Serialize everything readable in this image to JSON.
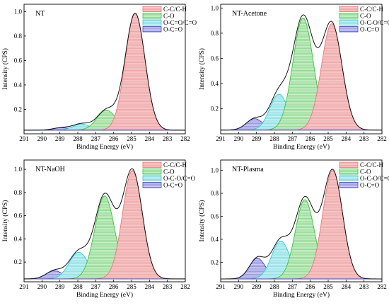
{
  "figure": {
    "xlabel": "Binding Energy (eV)",
    "ylabel": "Intensity (CPS)"
  },
  "chart_data": [
    {
      "type": "area",
      "label": "NT",
      "xlabel": "Binding Energy (eV)",
      "ylabel": "Intensity (CPS)",
      "xlim": [
        291,
        282
      ],
      "ylim": [
        0,
        1.06
      ],
      "xticks": [
        291,
        290,
        289,
        288,
        287,
        286,
        285,
        284,
        283,
        282
      ],
      "yticks": [
        0.2,
        0.4,
        0.6,
        0.8,
        1.0
      ],
      "xticklabels": [
        "291",
        "290",
        "289",
        "288",
        "287",
        "286",
        "285",
        "284",
        "283",
        "282"
      ],
      "yticklabels": [
        "0.2",
        "0.4",
        "0.6",
        "0.8",
        "1.0"
      ],
      "legend_position": "top-right",
      "baseline": 0.03,
      "series": [
        {
          "name": "C-C/C-H",
          "center": 284.8,
          "height": 0.955,
          "fwhm": 1.3,
          "color": "#e8777a",
          "fill": "#f6c9c9"
        },
        {
          "name": "C-O",
          "center": 286.4,
          "height": 0.163,
          "fwhm": 1.25,
          "color": "#3fbf3f",
          "fill": "#cbeecb"
        },
        {
          "name": "O-C=O/C=O",
          "center": 287.8,
          "height": 0.05,
          "fwhm": 1.1,
          "color": "#33c9d4",
          "fill": "#c9f0f3"
        },
        {
          "name": "O-C=O",
          "center": 288.9,
          "height": 0.02,
          "fwhm": 1.1,
          "color": "#4545c8",
          "fill": "#cdcdf0"
        }
      ]
    },
    {
      "type": "area",
      "label": "NT-Acetone",
      "xlabel": "Binding Energy (eV)",
      "ylabel": "Intensity (CPS)",
      "xlim": [
        291,
        282
      ],
      "ylim": [
        0,
        1.03
      ],
      "xticks": [
        291,
        290,
        289,
        288,
        287,
        286,
        285,
        284,
        283,
        282
      ],
      "yticks": [
        0.2,
        0.4,
        0.6,
        0.8,
        1.0
      ],
      "xticklabels": [
        "291",
        "290",
        "289",
        "288",
        "287",
        "286",
        "285",
        "284",
        "283",
        "282"
      ],
      "yticklabels": [
        "0.2",
        "0.4",
        "0.6",
        "0.8",
        "1.0"
      ],
      "legend_position": "top-right",
      "baseline": 0.03,
      "series": [
        {
          "name": "C-C/C-H",
          "center": 284.8,
          "height": 0.845,
          "fwhm": 1.35,
          "color": "#e8777a",
          "fill": "#f6c9c9"
        },
        {
          "name": "C-O",
          "center": 286.4,
          "height": 0.89,
          "fwhm": 1.35,
          "color": "#3fbf3f",
          "fill": "#cbeecb"
        },
        {
          "name": "O-C-O/C=O",
          "center": 287.75,
          "height": 0.285,
          "fwhm": 1.2,
          "color": "#33c9d4",
          "fill": "#c9f0f3"
        },
        {
          "name": "O-C=O",
          "center": 289.1,
          "height": 0.09,
          "fwhm": 1.1,
          "color": "#4545c8",
          "fill": "#cdcdf0"
        }
      ]
    },
    {
      "type": "area",
      "label": "NT-NaOH",
      "xlabel": "Binding Energy (eV)",
      "ylabel": "Intensity (CPS)",
      "xlim": [
        291,
        282
      ],
      "ylim": [
        0.03,
        1.08
      ],
      "xticks": [
        291,
        290,
        289,
        288,
        287,
        286,
        285,
        284,
        283,
        282
      ],
      "yticks": [
        0.2,
        0.4,
        0.6,
        0.8,
        1.0
      ],
      "xticklabels": [
        "291",
        "290",
        "289",
        "288",
        "287",
        "286",
        "285",
        "284",
        "283",
        "282"
      ],
      "yticklabels": [
        "0.2",
        "0.4",
        "0.6",
        "0.8",
        "1.0"
      ],
      "legend_position": "top-right",
      "baseline": 0.055,
      "series": [
        {
          "name": "C-C/C-H",
          "center": 284.95,
          "height": 0.935,
          "fwhm": 1.3,
          "color": "#e8777a",
          "fill": "#f6c9c9"
        },
        {
          "name": "C-O",
          "center": 286.5,
          "height": 0.715,
          "fwhm": 1.3,
          "color": "#3fbf3f",
          "fill": "#cbeecb"
        },
        {
          "name": "O-C-O/C=O",
          "center": 287.95,
          "height": 0.23,
          "fwhm": 1.25,
          "color": "#33c9d4",
          "fill": "#c9f0f3"
        },
        {
          "name": "O-C=O",
          "center": 289.3,
          "height": 0.07,
          "fwhm": 1.1,
          "color": "#4545c8",
          "fill": "#cdcdf0"
        }
      ]
    },
    {
      "type": "area",
      "label": "NT-Plasma",
      "xlabel": "Binding Energy (eV)",
      "ylabel": "Intensity (CPS)",
      "xlim": [
        291,
        282
      ],
      "ylim": [
        0.03,
        1.09
      ],
      "xticks": [
        291,
        290,
        289,
        288,
        287,
        286,
        285,
        284,
        283,
        282
      ],
      "yticks": [
        0.2,
        0.4,
        0.6,
        0.8,
        1.0
      ],
      "xticklabels": [
        "291",
        "290",
        "289",
        "288",
        "287",
        "286",
        "285",
        "284",
        "283",
        "282"
      ],
      "yticklabels": [
        "0.2",
        "0.4",
        "0.6",
        "0.8",
        "1.0"
      ],
      "legend_position": "top-right",
      "baseline": 0.055,
      "series": [
        {
          "name": "C-C/C-H",
          "center": 284.75,
          "height": 0.945,
          "fwhm": 1.3,
          "color": "#e8777a",
          "fill": "#f6c9c9"
        },
        {
          "name": "C-O",
          "center": 286.3,
          "height": 0.69,
          "fwhm": 1.25,
          "color": "#3fbf3f",
          "fill": "#cbeecb"
        },
        {
          "name": "O-C-O/C=O",
          "center": 287.65,
          "height": 0.33,
          "fwhm": 1.2,
          "color": "#33c9d4",
          "fill": "#c9f0f3"
        },
        {
          "name": "O-C=O",
          "center": 288.95,
          "height": 0.18,
          "fwhm": 1.05,
          "color": "#4545c8",
          "fill": "#cdcdf0"
        }
      ]
    }
  ]
}
